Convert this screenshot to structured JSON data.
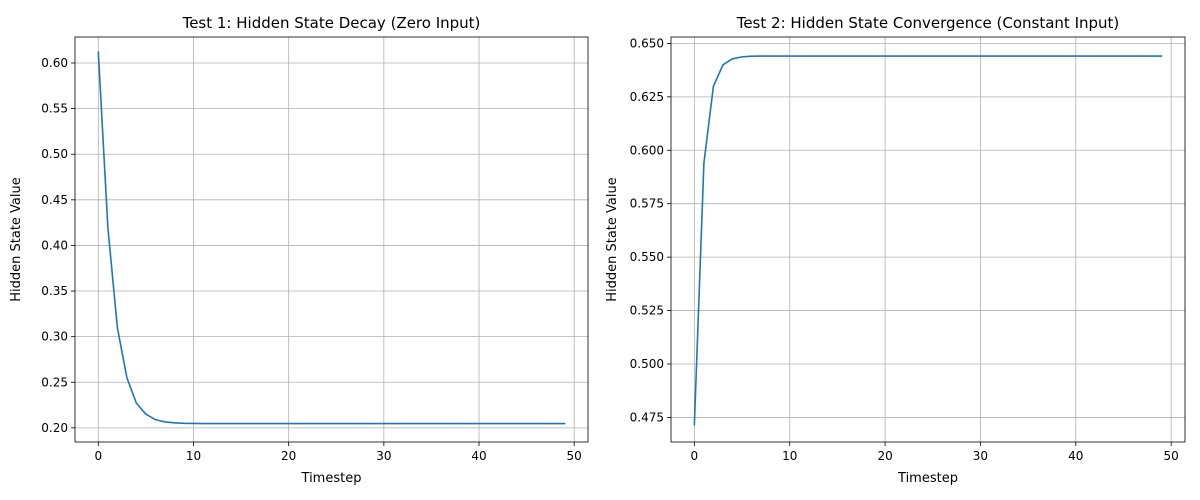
{
  "chart_data": [
    {
      "type": "line",
      "title": "Test 1: Hidden State Decay (Zero Input)",
      "xlabel": "Timestep",
      "ylabel": "Hidden State Value",
      "xlim": [
        -2.45,
        51.45
      ],
      "ylim": [
        0.1845,
        0.6285
      ],
      "xticks": [
        0,
        10,
        20,
        30,
        40,
        50
      ],
      "xtick_labels": [
        "0",
        "10",
        "20",
        "30",
        "40",
        "50"
      ],
      "yticks": [
        0.2,
        0.25,
        0.3,
        0.35,
        0.4,
        0.45,
        0.5,
        0.55,
        0.6
      ],
      "ytick_labels": [
        "0.20",
        "0.25",
        "0.30",
        "0.35",
        "0.40",
        "0.45",
        "0.50",
        "0.55",
        "0.60"
      ],
      "grid": true,
      "color": "#1f77b4",
      "x": [
        0,
        1,
        2,
        3,
        4,
        5,
        6,
        7,
        8,
        9,
        10,
        11,
        12,
        13,
        14,
        15,
        16,
        17,
        18,
        19,
        20,
        21,
        22,
        23,
        24,
        25,
        26,
        27,
        28,
        29,
        30,
        31,
        32,
        33,
        34,
        35,
        36,
        37,
        38,
        39,
        40,
        41,
        42,
        43,
        44,
        45,
        46,
        47,
        48,
        49
      ],
      "y": [
        0.612,
        0.42,
        0.31,
        0.255,
        0.227,
        0.215,
        0.209,
        0.2065,
        0.2055,
        0.205,
        0.2048,
        0.2047,
        0.2047,
        0.2047,
        0.2047,
        0.2047,
        0.2047,
        0.2047,
        0.2047,
        0.2047,
        0.2047,
        0.2047,
        0.2047,
        0.2047,
        0.2047,
        0.2047,
        0.2047,
        0.2047,
        0.2047,
        0.2047,
        0.2047,
        0.2047,
        0.2047,
        0.2047,
        0.2047,
        0.2047,
        0.2047,
        0.2047,
        0.2047,
        0.2047,
        0.2047,
        0.2047,
        0.2047,
        0.2047,
        0.2047,
        0.2047,
        0.2047,
        0.2047,
        0.2047,
        0.2047
      ]
    },
    {
      "type": "line",
      "title": "Test 2: Hidden State Convergence (Constant Input)",
      "xlabel": "Timestep",
      "ylabel": "Hidden State Value",
      "xlim": [
        -2.45,
        51.45
      ],
      "ylim": [
        0.4635,
        0.653
      ],
      "xticks": [
        0,
        10,
        20,
        30,
        40,
        50
      ],
      "xtick_labels": [
        "0",
        "10",
        "20",
        "30",
        "40",
        "50"
      ],
      "yticks": [
        0.475,
        0.5,
        0.525,
        0.55,
        0.575,
        0.6,
        0.625,
        0.65
      ],
      "ytick_labels": [
        "0.475",
        "0.500",
        "0.525",
        "0.550",
        "0.575",
        "0.600",
        "0.625",
        "0.650"
      ],
      "grid": true,
      "color": "#1f77b4",
      "x": [
        0,
        1,
        2,
        3,
        4,
        5,
        6,
        7,
        8,
        9,
        10,
        11,
        12,
        13,
        14,
        15,
        16,
        17,
        18,
        19,
        20,
        21,
        22,
        23,
        24,
        25,
        26,
        27,
        28,
        29,
        30,
        31,
        32,
        33,
        34,
        35,
        36,
        37,
        38,
        39,
        40,
        41,
        42,
        43,
        44,
        45,
        46,
        47,
        48,
        49
      ],
      "y": [
        0.4715,
        0.594,
        0.63,
        0.64,
        0.6428,
        0.6437,
        0.644,
        0.6441,
        0.6441,
        0.6441,
        0.6441,
        0.6441,
        0.6441,
        0.6441,
        0.6441,
        0.6441,
        0.6441,
        0.6441,
        0.6441,
        0.6441,
        0.6441,
        0.6441,
        0.6441,
        0.6441,
        0.6441,
        0.6441,
        0.6441,
        0.6441,
        0.6441,
        0.6441,
        0.6441,
        0.6441,
        0.6441,
        0.6441,
        0.6441,
        0.6441,
        0.6441,
        0.6441,
        0.6441,
        0.6441,
        0.6441,
        0.6441,
        0.6441,
        0.6441,
        0.6441,
        0.6441,
        0.6441,
        0.6441,
        0.6441,
        0.6441
      ]
    }
  ]
}
